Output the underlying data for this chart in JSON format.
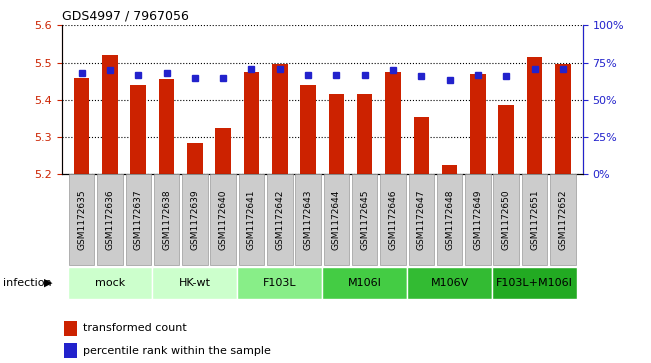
{
  "title": "GDS4997 / 7967056",
  "samples": [
    "GSM1172635",
    "GSM1172636",
    "GSM1172637",
    "GSM1172638",
    "GSM1172639",
    "GSM1172640",
    "GSM1172641",
    "GSM1172642",
    "GSM1172643",
    "GSM1172644",
    "GSM1172645",
    "GSM1172646",
    "GSM1172647",
    "GSM1172648",
    "GSM1172649",
    "GSM1172650",
    "GSM1172651",
    "GSM1172652"
  ],
  "bar_values": [
    5.46,
    5.52,
    5.44,
    5.455,
    5.285,
    5.325,
    5.475,
    5.495,
    5.44,
    5.415,
    5.415,
    5.475,
    5.355,
    5.225,
    5.47,
    5.385,
    5.515,
    5.495
  ],
  "percentile_values": [
    68,
    70,
    67,
    68,
    65,
    65,
    71,
    71,
    67,
    67,
    67,
    70,
    66,
    63,
    67,
    66,
    71,
    71
  ],
  "ymin": 5.2,
  "ymax": 5.6,
  "yticks": [
    5.2,
    5.3,
    5.4,
    5.5,
    5.6
  ],
  "right_yticks": [
    0,
    25,
    50,
    75,
    100
  ],
  "right_ytick_labels": [
    "0%",
    "25%",
    "50%",
    "75%",
    "100%"
  ],
  "bar_color": "#cc2200",
  "dot_color": "#2222cc",
  "groups": [
    {
      "label": "mock",
      "start": 0,
      "end": 3,
      "color": "#ccffcc"
    },
    {
      "label": "HK-wt",
      "start": 3,
      "end": 6,
      "color": "#ccffcc"
    },
    {
      "label": "F103L",
      "start": 6,
      "end": 9,
      "color": "#88ee88"
    },
    {
      "label": "M106I",
      "start": 9,
      "end": 12,
      "color": "#44cc44"
    },
    {
      "label": "M106V",
      "start": 12,
      "end": 15,
      "color": "#33bb33"
    },
    {
      "label": "F103L+M106I",
      "start": 15,
      "end": 18,
      "color": "#22aa22"
    }
  ],
  "infection_label": "infection",
  "legend_bar_label": "transformed count",
  "legend_dot_label": "percentile rank within the sample",
  "bar_width": 0.55,
  "left_tick_color": "#cc2200",
  "right_tick_color": "#2222cc",
  "sample_box_color": "#cccccc",
  "sample_box_edge": "#999999"
}
